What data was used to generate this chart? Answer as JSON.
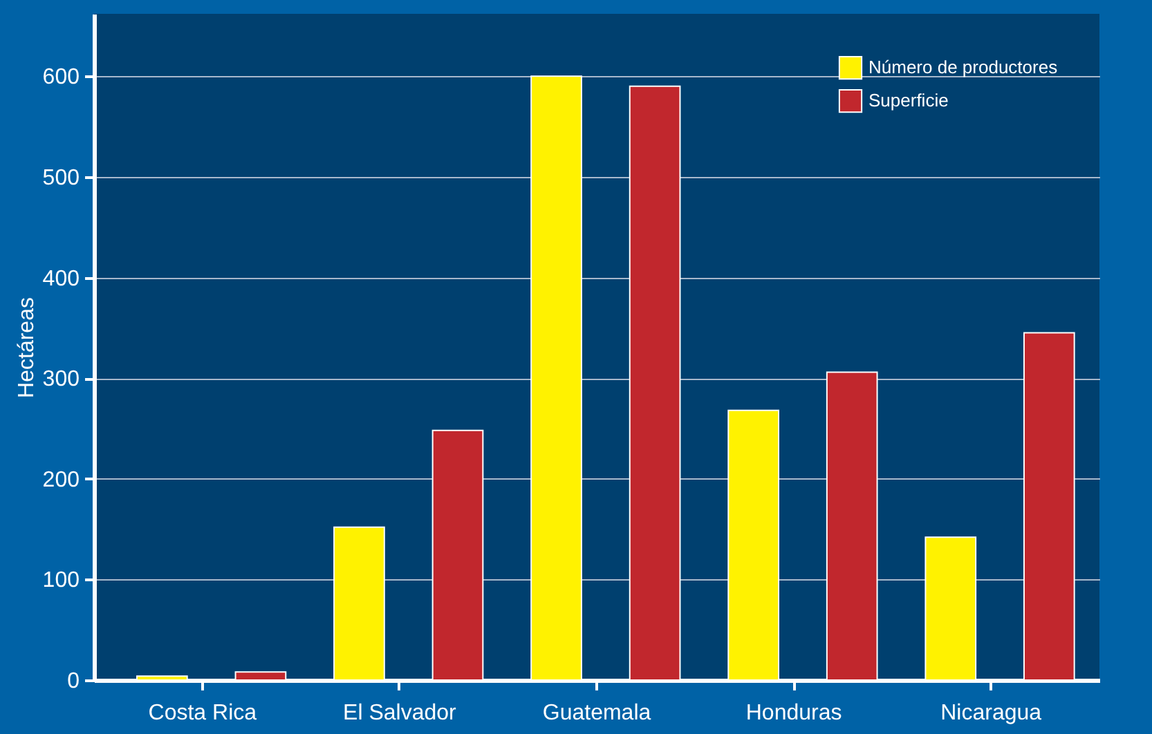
{
  "chart_data": {
    "type": "bar",
    "ylabel": "Hectáreas",
    "categories": [
      "Costa Rica",
      "El Salvador",
      "Guatemala",
      "Honduras",
      "Nicaragua"
    ],
    "series": [
      {
        "name": "Número de productores",
        "color": "#fff200",
        "values": [
          4,
          152,
          600,
          268,
          142
        ]
      },
      {
        "name": "Superficie",
        "color": "#c1272d",
        "values": [
          8,
          248,
          590,
          306,
          345
        ]
      }
    ],
    "ylim": [
      0,
      662
    ],
    "yticks": [
      0,
      100,
      200,
      300,
      400,
      500,
      600
    ],
    "grid": "y",
    "legend": "top right"
  }
}
